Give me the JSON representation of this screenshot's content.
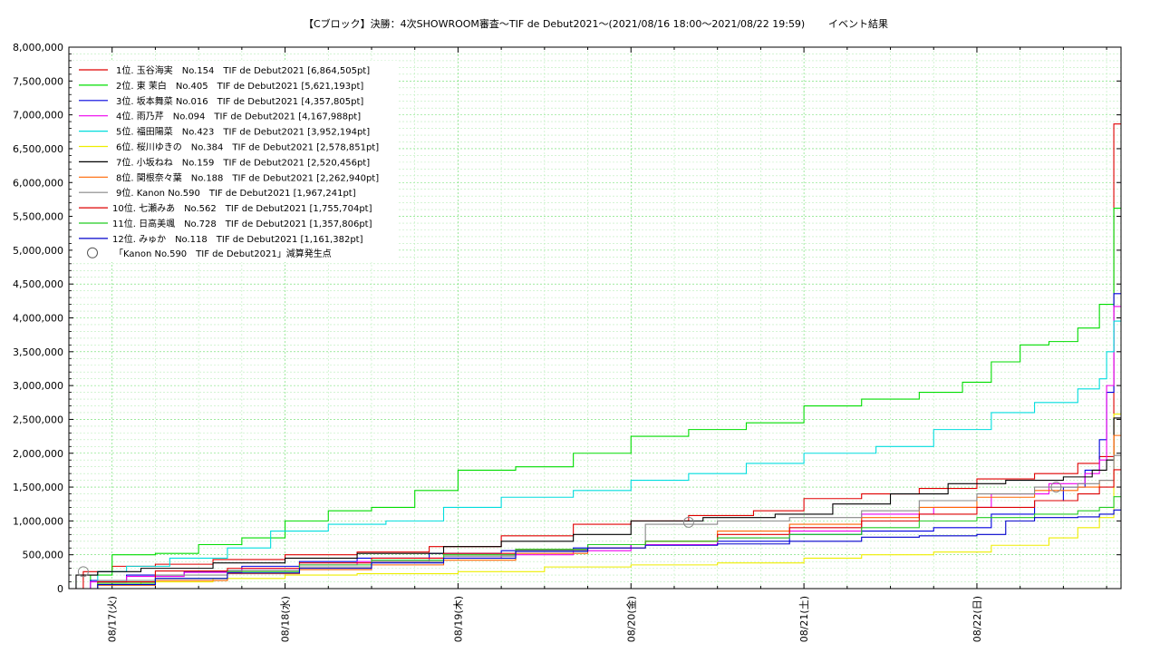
{
  "chart_data": {
    "type": "line",
    "title": "【Cブロック】決勝：4次SHOWROOM審査〜TIF de Debut2021〜(2021/08/16 18:00〜2021/08/22 19:59)",
    "title_suffix": "イベント結果",
    "xlabel": "",
    "ylabel": "",
    "x_ticks": [
      "08/17(火)",
      "08/18(水)",
      "08/19(木)",
      "08/20(金)",
      "08/21(土)",
      "08/22(日)"
    ],
    "x_tick_hours": [
      6,
      30,
      54,
      78,
      102,
      126
    ],
    "xlim_hours": [
      0,
      146
    ],
    "x_origin": "2021/08/16 18:00",
    "ylim": [
      0,
      8000000
    ],
    "y_ticks": [
      "0",
      "500,000",
      "1,000,000",
      "1,500,000",
      "2,000,000",
      "2,500,000",
      "3,000,000",
      "3,500,000",
      "4,000,000",
      "4,500,000",
      "5,000,000",
      "5,500,000",
      "6,000,000",
      "6,500,000",
      "7,000,000",
      "7,500,000",
      "8,000,000"
    ],
    "grid": true,
    "legend_position": "top-left",
    "series": [
      {
        "name": "1位. 玉谷海実　No.154　TIF de Debut2021 [6,864,505pt]",
        "color": "#e00000",
        "x": [
          0,
          2,
          6,
          12,
          20,
          30,
          40,
          50,
          60,
          70,
          78,
          86,
          95,
          102,
          110,
          118,
          126,
          134,
          140,
          143,
          145,
          146
        ],
        "y": [
          0,
          250000,
          330000,
          360000,
          430000,
          500000,
          540000,
          620000,
          780000,
          950000,
          1000000,
          1080000,
          1150000,
          1330000,
          1400000,
          1480000,
          1620000,
          1700000,
          1850000,
          1950000,
          6864505,
          6864505
        ]
      },
      {
        "name": "2位. 東 茉白　No.405　TIF de Debut2021 [5,621,193pt]",
        "color": "#00dd00",
        "x": [
          0,
          3,
          6,
          12,
          18,
          24,
          30,
          36,
          42,
          48,
          54,
          62,
          70,
          78,
          86,
          94,
          102,
          110,
          118,
          124,
          128,
          132,
          136,
          140,
          143,
          145,
          146
        ],
        "y": [
          0,
          200000,
          500000,
          520000,
          650000,
          750000,
          1000000,
          1150000,
          1200000,
          1450000,
          1750000,
          1800000,
          2000000,
          2250000,
          2350000,
          2450000,
          2700000,
          2800000,
          2900000,
          3050000,
          3350000,
          3600000,
          3650000,
          3850000,
          4200000,
          5621193,
          5621193
        ]
      },
      {
        "name": "3位. 坂本舞菜 No.016　TIF de Debut2021 [4,357,805pt]",
        "color": "#0000dd",
        "x": [
          0,
          3,
          8,
          16,
          24,
          32,
          40,
          50,
          60,
          70,
          78,
          90,
          100,
          110,
          120,
          128,
          134,
          138,
          141,
          143,
          144,
          145,
          146
        ],
        "y": [
          0,
          120000,
          200000,
          250000,
          330000,
          400000,
          450000,
          520000,
          560000,
          600000,
          650000,
          700000,
          800000,
          850000,
          900000,
          1100000,
          1300000,
          1500000,
          1750000,
          2200000,
          2900000,
          4357805,
          4357805
        ]
      },
      {
        "name": "4位. 雨乃芹　No.094　TIF de Debut2021 [4,167,988pt]",
        "color": "#ee00ee",
        "x": [
          0,
          3,
          8,
          16,
          24,
          32,
          40,
          50,
          60,
          70,
          78,
          90,
          100,
          110,
          120,
          128,
          136,
          141,
          143,
          144,
          145,
          146
        ],
        "y": [
          0,
          100000,
          180000,
          240000,
          300000,
          350000,
          400000,
          450000,
          500000,
          560000,
          650000,
          750000,
          850000,
          1100000,
          1200000,
          1400000,
          1550000,
          1700000,
          1900000,
          3000000,
          4167988,
          4167988
        ]
      },
      {
        "name": "5位. 福田陽菜　No.423　TIF de Debut2021 [3,952,194pt]",
        "color": "#00dddd",
        "x": [
          0,
          4,
          8,
          14,
          22,
          28,
          36,
          44,
          52,
          60,
          70,
          78,
          86,
          94,
          102,
          112,
          120,
          128,
          134,
          140,
          143,
          144,
          145,
          146
        ],
        "y": [
          0,
          250000,
          330000,
          450000,
          600000,
          850000,
          950000,
          1000000,
          1200000,
          1350000,
          1450000,
          1600000,
          1700000,
          1850000,
          2000000,
          2100000,
          2350000,
          2600000,
          2750000,
          2950000,
          3100000,
          3500000,
          3952194,
          3952194
        ]
      },
      {
        "name": "6位. 桜川ゆきの　No.384　TIF de Debut2021 [2,578,851pt]",
        "color": "#eeee00",
        "x": [
          0,
          4,
          10,
          20,
          30,
          40,
          54,
          66,
          78,
          90,
          102,
          110,
          120,
          128,
          136,
          140,
          143,
          145,
          146
        ],
        "y": [
          0,
          60000,
          100000,
          150000,
          200000,
          220000,
          250000,
          320000,
          350000,
          380000,
          450000,
          500000,
          540000,
          640000,
          750000,
          900000,
          1050000,
          2578851,
          2578851
        ]
      },
      {
        "name": "7位. 小坂ねね　No.159　TIF de Debut2021 [2,520,456pt]",
        "color": "#000000",
        "x": [
          0,
          1,
          4,
          10,
          20,
          30,
          40,
          52,
          60,
          70,
          78,
          88,
          98,
          106,
          114,
          122,
          130,
          138,
          142,
          144,
          145,
          146
        ],
        "y": [
          0,
          200000,
          250000,
          300000,
          380000,
          450000,
          520000,
          620000,
          700000,
          800000,
          1000000,
          1050000,
          1100000,
          1250000,
          1400000,
          1550000,
          1600000,
          1650000,
          1750000,
          1900000,
          2520456,
          2520456
        ]
      },
      {
        "name": "8位. 関根奈々葉　No.188　TIF de Debut2021 [2,262,940pt]",
        "color": "#ff6600",
        "x": [
          0,
          4,
          12,
          22,
          32,
          42,
          52,
          62,
          72,
          80,
          90,
          100,
          110,
          118,
          126,
          134,
          140,
          143,
          145,
          146
        ],
        "y": [
          0,
          50000,
          120000,
          220000,
          280000,
          350000,
          420000,
          520000,
          600000,
          700000,
          850000,
          950000,
          1050000,
          1200000,
          1350000,
          1450000,
          1500000,
          1600000,
          2262940,
          2262940
        ]
      },
      {
        "name": "9位. Kanon  No.590　TIF de Debut2021 [1,967,241pt]",
        "color": "#888888",
        "x": [
          0,
          4,
          12,
          22,
          32,
          42,
          52,
          62,
          72,
          80,
          90,
          100,
          110,
          118,
          126,
          134,
          140,
          143,
          145,
          146
        ],
        "y": [
          0,
          120000,
          200000,
          270000,
          320000,
          400000,
          480000,
          560000,
          650000,
          950000,
          1000000,
          1050000,
          1150000,
          1300000,
          1400000,
          1500000,
          1550000,
          1600000,
          1967241,
          1967241
        ]
      },
      {
        "name": "10位. 七瀬みあ　No.562　TIF de Debut2021 [1,755,704pt]",
        "color": "#dd0000",
        "x": [
          0,
          4,
          12,
          22,
          32,
          42,
          52,
          62,
          72,
          80,
          90,
          100,
          110,
          118,
          126,
          134,
          140,
          143,
          145,
          146
        ],
        "y": [
          0,
          100000,
          260000,
          300000,
          380000,
          450000,
          520000,
          580000,
          650000,
          700000,
          800000,
          900000,
          1000000,
          1100000,
          1200000,
          1300000,
          1400000,
          1500000,
          1755704,
          1755704
        ]
      },
      {
        "name": "11位. 日高美颯　No.728　TIF de Debut2021 [1,357,806pt]",
        "color": "#22cc22",
        "x": [
          0,
          4,
          12,
          22,
          32,
          42,
          52,
          62,
          72,
          80,
          90,
          100,
          110,
          118,
          126,
          134,
          140,
          143,
          145,
          146
        ],
        "y": [
          0,
          80000,
          150000,
          250000,
          350000,
          420000,
          500000,
          580000,
          650000,
          700000,
          750000,
          800000,
          900000,
          1000000,
          1050000,
          1100000,
          1150000,
          1200000,
          1357806,
          1357806
        ]
      },
      {
        "name": "12位. みゅか　No.118　TIF de Debut2021 [1,161,382pt]",
        "color": "#0000cc",
        "x": [
          0,
          4,
          12,
          22,
          32,
          42,
          52,
          62,
          72,
          80,
          90,
          100,
          110,
          118,
          126,
          130,
          134,
          140,
          143,
          145,
          146
        ],
        "y": [
          0,
          60000,
          150000,
          230000,
          300000,
          380000,
          450000,
          550000,
          600000,
          640000,
          660000,
          700000,
          760000,
          780000,
          800000,
          1000000,
          1050000,
          1060000,
          1100000,
          1161382,
          1161382
        ]
      }
    ],
    "marker_legend": "「Kanon  No.590　TIF de Debut2021」減算発生点",
    "markers": [
      {
        "x": 2,
        "y": 250000
      },
      {
        "x": 86,
        "y": 980000
      },
      {
        "x": 137,
        "y": 1500000
      }
    ]
  }
}
